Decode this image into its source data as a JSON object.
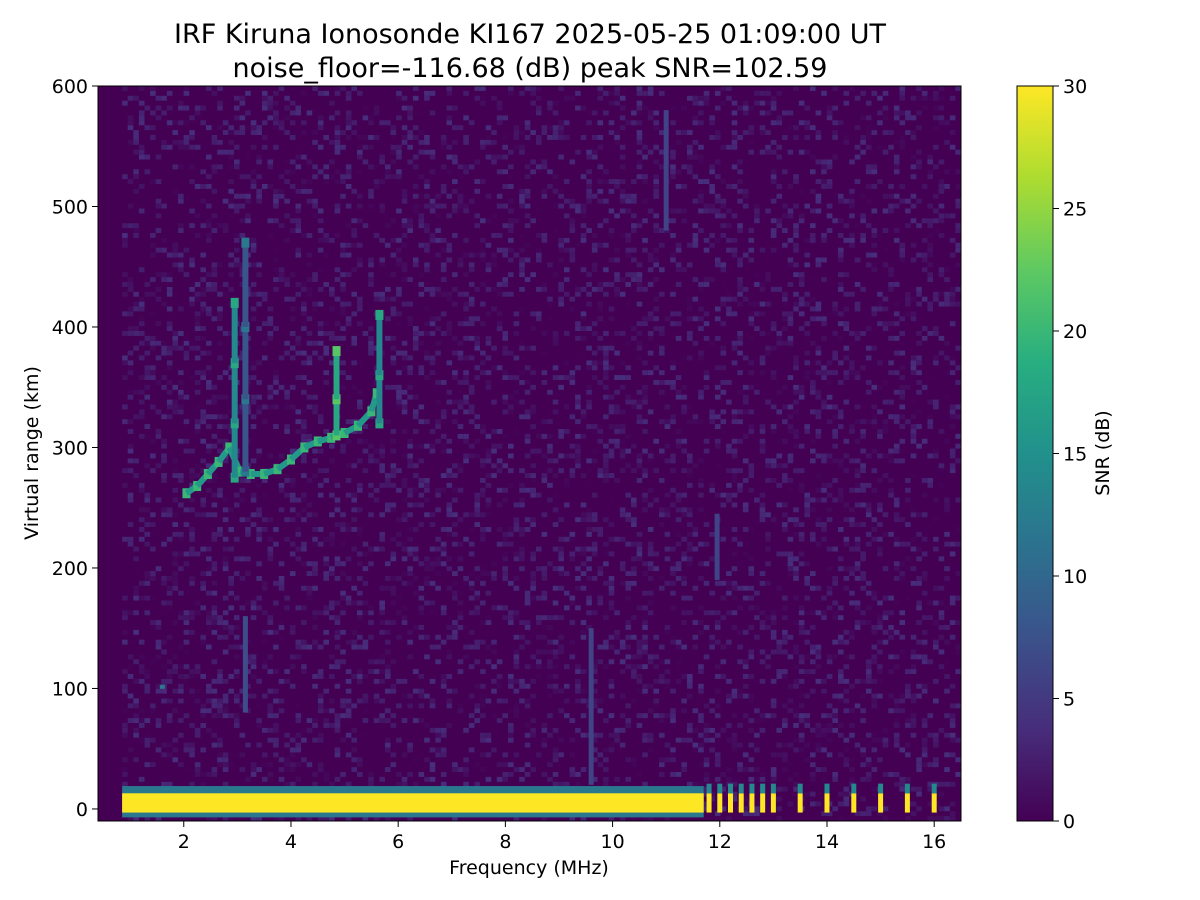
{
  "chart_data": {
    "type": "heatmap",
    "title": "IRF Kiruna Ionosonde KI167 2025-05-25 01:09:00  UT",
    "subtitle": "noise_floor=-116.68 (dB) peak SNR=102.59",
    "xlabel": "Frequency (MHz)",
    "ylabel": "Virtual range (km)",
    "colorbar_label": "SNR (dB)",
    "colormap": "viridis",
    "xlim": [
      0.4,
      16.5
    ],
    "ylim": [
      -10,
      600
    ],
    "clim": [
      0,
      30
    ],
    "x_ticks": [
      2,
      4,
      6,
      8,
      10,
      12,
      14,
      16
    ],
    "y_ticks": [
      0,
      100,
      200,
      300,
      400,
      500,
      600
    ],
    "colorbar_ticks": [
      0,
      5,
      10,
      15,
      20,
      25,
      30
    ],
    "data_extent": {
      "f_start": 0.85,
      "f_end": 16.5
    },
    "ground_echo": {
      "range_km": 5,
      "continuous_band_f": [
        0.85,
        11.7
      ],
      "snr": 30,
      "discrete_lines_f": [
        11.8,
        12.0,
        12.2,
        12.4,
        12.6,
        12.8,
        13.0,
        13.5,
        14.0,
        14.5,
        15.0,
        15.5,
        16.0
      ]
    },
    "echo_traces": [
      {
        "f": [
          2.05,
          2.25,
          2.45,
          2.65,
          2.85,
          3.05,
          3.25,
          3.5,
          3.75,
          4.0,
          4.25,
          4.5,
          4.75,
          5.0,
          5.25,
          5.5,
          5.6
        ],
        "range_km": [
          262,
          268,
          278,
          288,
          300,
          280,
          278,
          278,
          282,
          290,
          300,
          305,
          308,
          312,
          318,
          330,
          345
        ],
        "snr": 20
      },
      {
        "f": [
          2.95,
          2.95,
          2.95,
          2.95
        ],
        "range_km": [
          275,
          320,
          370,
          420
        ],
        "snr": 18
      },
      {
        "f": [
          3.15,
          3.15,
          3.15,
          3.15
        ],
        "range_km": [
          280,
          340,
          400,
          470
        ],
        "snr": 12
      },
      {
        "f": [
          4.85,
          4.85,
          4.85
        ],
        "range_km": [
          310,
          340,
          380
        ],
        "snr": 22
      },
      {
        "f": [
          5.65,
          5.65,
          5.65
        ],
        "range_km": [
          320,
          360,
          410
        ],
        "snr": 18
      }
    ],
    "weak_echoes": [
      {
        "f": 1.6,
        "range_km": [
          100,
          103
        ],
        "snr": 12
      },
      {
        "f": 3.15,
        "range_km": [
          80,
          160
        ],
        "snr": 7
      },
      {
        "f": 9.6,
        "range_km": [
          20,
          150
        ],
        "snr": 6
      },
      {
        "f": 11.0,
        "range_km": [
          480,
          580
        ],
        "snr": 6
      },
      {
        "f": 11.95,
        "range_km": [
          190,
          245
        ],
        "snr": 6
      }
    ]
  }
}
